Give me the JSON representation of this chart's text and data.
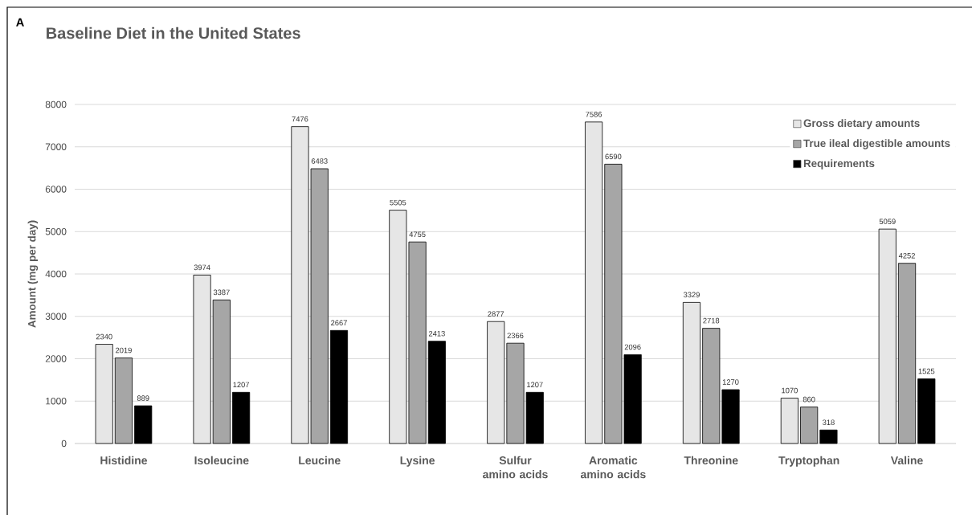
{
  "chart_data": {
    "type": "bar",
    "title": "Baseline Diet in the United States",
    "ylabel": "Amount (mg per day)",
    "annotations": [
      "A"
    ],
    "categories": [
      "Histidine",
      "Isoleucine",
      "Leucine",
      "Lysine",
      "Sulfur amino acids",
      "Aromatic amino acids",
      "Threonine",
      "Tryptophan",
      "Valine"
    ],
    "series": [
      {
        "name": "Gross dietary amounts",
        "color": "#e6e6e6",
        "values": [
          2340,
          3974,
          7476,
          5505,
          2877,
          7586,
          3329,
          1070,
          5059
        ]
      },
      {
        "name": "True ileal digestible amounts",
        "color": "#a6a6a6",
        "values": [
          2019,
          3387,
          6483,
          4755,
          2366,
          6590,
          2718,
          860,
          4252
        ]
      },
      {
        "name": "Requirements",
        "color": "#000000",
        "values": [
          889,
          1207,
          2667,
          2413,
          1207,
          2096,
          1270,
          318,
          1525
        ]
      }
    ],
    "ylim": [
      0,
      8000
    ],
    "yticks": [
      0,
      1000,
      2000,
      3000,
      4000,
      5000,
      6000,
      7000,
      8000
    ],
    "grid": "y",
    "legend": "top right",
    "data_labels": true
  }
}
